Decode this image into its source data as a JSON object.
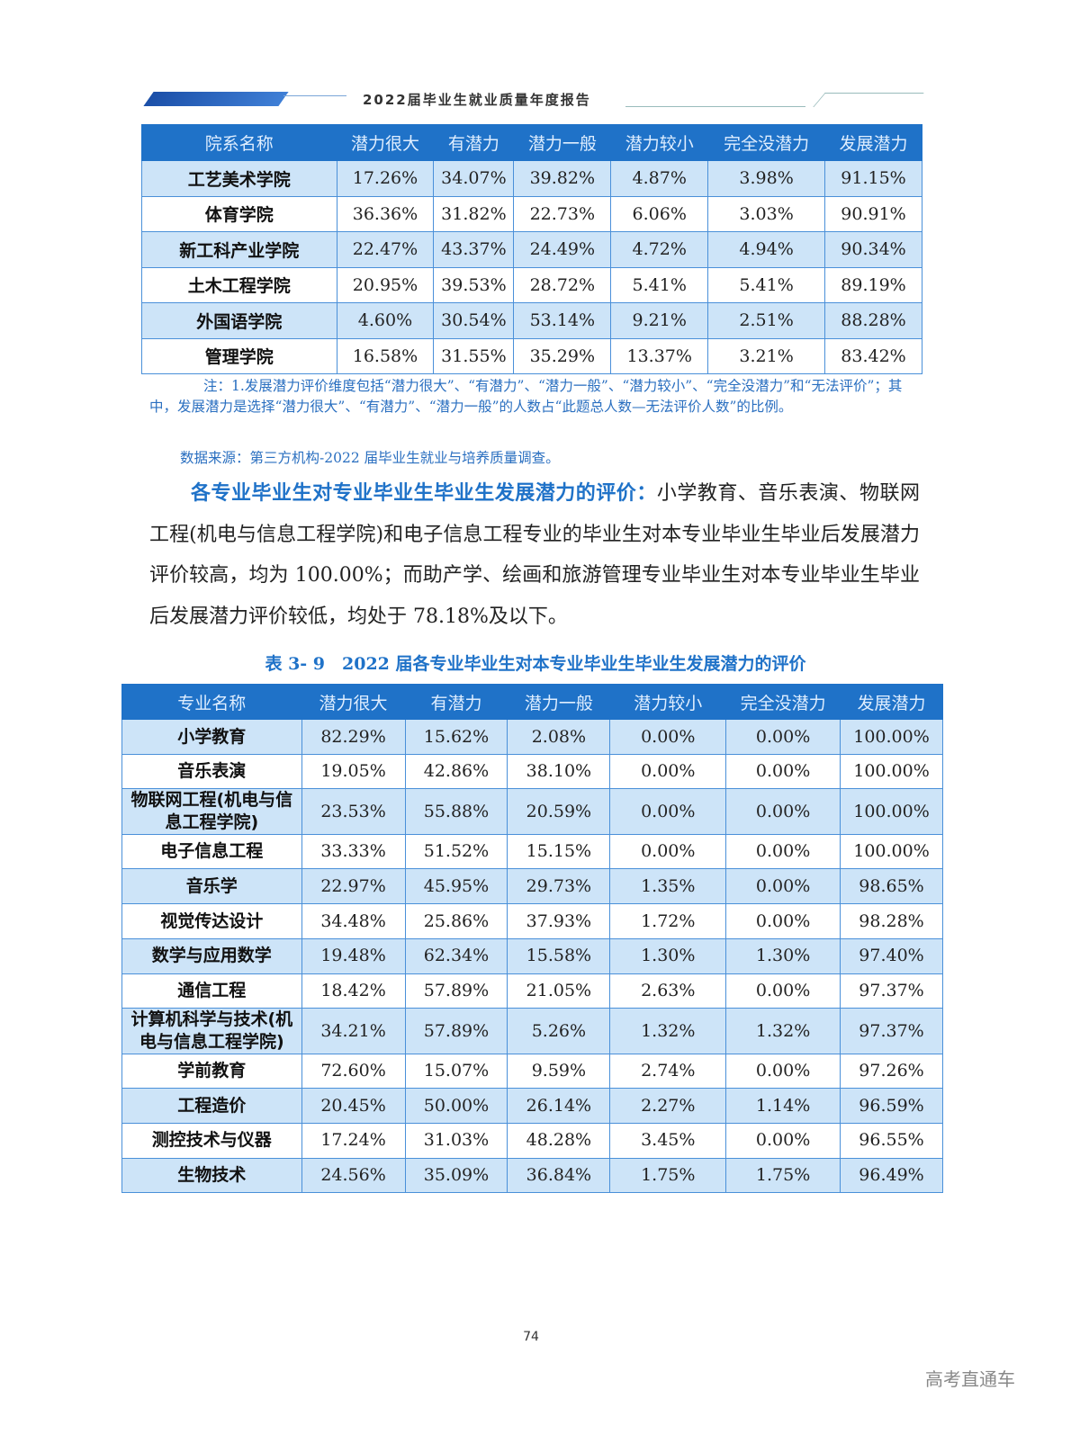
{
  "header": {
    "title": "2022届毕业生就业质量年度报告"
  },
  "table1": {
    "columns": [
      "院系名称",
      "潜力很大",
      "有潜力",
      "潜力一般",
      "潜力较小",
      "完全没潜力",
      "发展潜力"
    ],
    "rows": [
      [
        "工艺美术学院",
        "17.26%",
        "34.07%",
        "39.82%",
        "4.87%",
        "3.98%",
        "91.15%"
      ],
      [
        "体育学院",
        "36.36%",
        "31.82%",
        "22.73%",
        "6.06%",
        "3.03%",
        "90.91%"
      ],
      [
        "新工科产业学院",
        "22.47%",
        "43.37%",
        "24.49%",
        "4.72%",
        "4.94%",
        "90.34%"
      ],
      [
        "土木工程学院",
        "20.95%",
        "39.53%",
        "28.72%",
        "5.41%",
        "5.41%",
        "89.19%"
      ],
      [
        "外国语学院",
        "4.60%",
        "30.54%",
        "53.14%",
        "9.21%",
        "2.51%",
        "88.28%"
      ],
      [
        "管理学院",
        "16.58%",
        "31.55%",
        "35.29%",
        "13.37%",
        "3.21%",
        "83.42%"
      ]
    ]
  },
  "note": "注：1.发展潜力评价维度包括“潜力很大”、“有潜力”、“潜力一般”、“潜力较小”、“完全没潜力”和“无法评价”；其中，发展潜力是选择“潜力很大”、“有潜力”、“潜力一般”的人数占“此题总人数—无法评价人数”的比例。",
  "source": "数据来源：第三方机构-2022 届毕业生就业与培养质量调查。",
  "paragraph": {
    "heading": "各专业毕业生对专业毕业生毕业生发展潜力的评价：",
    "body": "小学教育、音乐表演、物联网工程(机电与信息工程学院)和电子信息工程专业的毕业生对本专业毕业生毕业后发展潜力评价较高，均为 100.00%；而助产学、绘画和旅游管理专业毕业生对本专业毕业生毕业后发展潜力评价较低，均处于 78.18%及以下。"
  },
  "table2": {
    "caption": "表 3- 9　2022 届各专业毕业生对本专业毕业生毕业生发展潜力的评价",
    "columns": [
      "专业名称",
      "潜力很大",
      "有潜力",
      "潜力一般",
      "潜力较小",
      "完全没潜力",
      "发展潜力"
    ],
    "rows": [
      [
        "小学教育",
        "82.29%",
        "15.62%",
        "2.08%",
        "0.00%",
        "0.00%",
        "100.00%"
      ],
      [
        "音乐表演",
        "19.05%",
        "42.86%",
        "38.10%",
        "0.00%",
        "0.00%",
        "100.00%"
      ],
      [
        "物联网工程(机电与信息工程学院)",
        "23.53%",
        "55.88%",
        "20.59%",
        "0.00%",
        "0.00%",
        "100.00%"
      ],
      [
        "电子信息工程",
        "33.33%",
        "51.52%",
        "15.15%",
        "0.00%",
        "0.00%",
        "100.00%"
      ],
      [
        "音乐学",
        "22.97%",
        "45.95%",
        "29.73%",
        "1.35%",
        "0.00%",
        "98.65%"
      ],
      [
        "视觉传达设计",
        "34.48%",
        "25.86%",
        "37.93%",
        "1.72%",
        "0.00%",
        "98.28%"
      ],
      [
        "数学与应用数学",
        "19.48%",
        "62.34%",
        "15.58%",
        "1.30%",
        "1.30%",
        "97.40%"
      ],
      [
        "通信工程",
        "18.42%",
        "57.89%",
        "21.05%",
        "2.63%",
        "0.00%",
        "97.37%"
      ],
      [
        "计算机科学与技术(机电与信息工程学院)",
        "34.21%",
        "57.89%",
        "5.26%",
        "1.32%",
        "1.32%",
        "97.37%"
      ],
      [
        "学前教育",
        "72.60%",
        "15.07%",
        "9.59%",
        "2.74%",
        "0.00%",
        "97.26%"
      ],
      [
        "工程造价",
        "20.45%",
        "50.00%",
        "26.14%",
        "2.27%",
        "1.14%",
        "96.59%"
      ],
      [
        "测控技术与仪器",
        "17.24%",
        "31.03%",
        "48.28%",
        "3.45%",
        "0.00%",
        "96.55%"
      ],
      [
        "生物技术",
        "24.56%",
        "35.09%",
        "36.84%",
        "1.75%",
        "1.75%",
        "96.49%"
      ]
    ]
  },
  "page_number": "74",
  "watermark": "高考直通车"
}
